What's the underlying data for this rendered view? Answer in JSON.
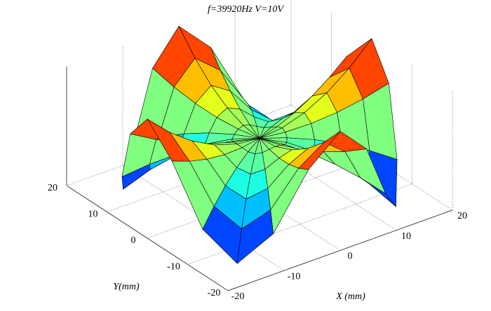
{
  "chart_data": {
    "type": "surface",
    "title": "f=39920Hz V=10V",
    "x_label": "X (mm)",
    "y_label": "Y(mm)",
    "xlim": [
      -20,
      20
    ],
    "ylim": [
      -20,
      20
    ],
    "zlim": [
      -1,
      1
    ],
    "xticks": [
      -20,
      -10,
      0,
      10,
      20
    ],
    "yticks": [
      -20,
      -10,
      0,
      10,
      20
    ],
    "grid": true,
    "colormap": "jet",
    "edge_color": "#000000",
    "r": [
      0,
      4,
      8,
      12,
      16,
      20
    ],
    "theta": [
      0,
      15,
      30,
      45,
      60,
      75,
      90,
      105,
      120,
      135,
      150,
      165,
      180,
      195,
      210,
      225,
      240,
      255,
      270,
      285,
      300,
      315,
      330,
      345
    ],
    "z": [
      [
        0,
        0,
        0,
        0,
        0,
        0,
        0,
        0,
        0,
        0,
        0,
        0,
        0,
        0,
        0,
        0,
        0,
        0,
        0,
        0,
        0,
        0,
        0,
        0
      ],
      [
        0.04,
        0.02,
        -0.02,
        -0.04,
        -0.02,
        0.02,
        0.04,
        0.02,
        -0.02,
        -0.04,
        -0.02,
        0.02,
        0.04,
        0.02,
        -0.02,
        -0.04,
        -0.02,
        0.02,
        0.04,
        0.02,
        -0.02,
        -0.04,
        -0.02,
        0.02
      ],
      [
        0.16,
        0.08,
        -0.08,
        -0.16,
        -0.08,
        0.08,
        0.16,
        0.08,
        -0.08,
        -0.16,
        -0.08,
        0.08,
        0.16,
        0.08,
        -0.08,
        -0.16,
        -0.08,
        0.08,
        0.16,
        0.08,
        -0.08,
        -0.16,
        -0.08,
        0.08
      ],
      [
        0.36,
        0.18,
        -0.18,
        -0.36,
        -0.18,
        0.18,
        0.36,
        0.18,
        -0.18,
        -0.36,
        -0.18,
        0.18,
        0.36,
        0.18,
        -0.18,
        -0.36,
        -0.18,
        0.18,
        0.36,
        0.18,
        -0.18,
        -0.36,
        -0.18,
        0.18
      ],
      [
        0.64,
        0.32,
        -0.32,
        -0.64,
        -0.32,
        0.32,
        0.64,
        0.32,
        -0.32,
        -0.64,
        -0.32,
        0.32,
        0.64,
        0.32,
        -0.32,
        -0.64,
        -0.32,
        0.32,
        0.64,
        0.32,
        -0.32,
        -0.64,
        -0.32,
        0.32
      ],
      [
        1,
        0.5,
        -0.5,
        -1,
        -0.5,
        0.5,
        1,
        0.5,
        -0.5,
        -1,
        -0.5,
        0.5,
        1,
        0.5,
        -0.5,
        -1,
        -0.5,
        0.5,
        1,
        0.5,
        -0.5,
        -1,
        -0.5,
        0.5
      ]
    ]
  }
}
